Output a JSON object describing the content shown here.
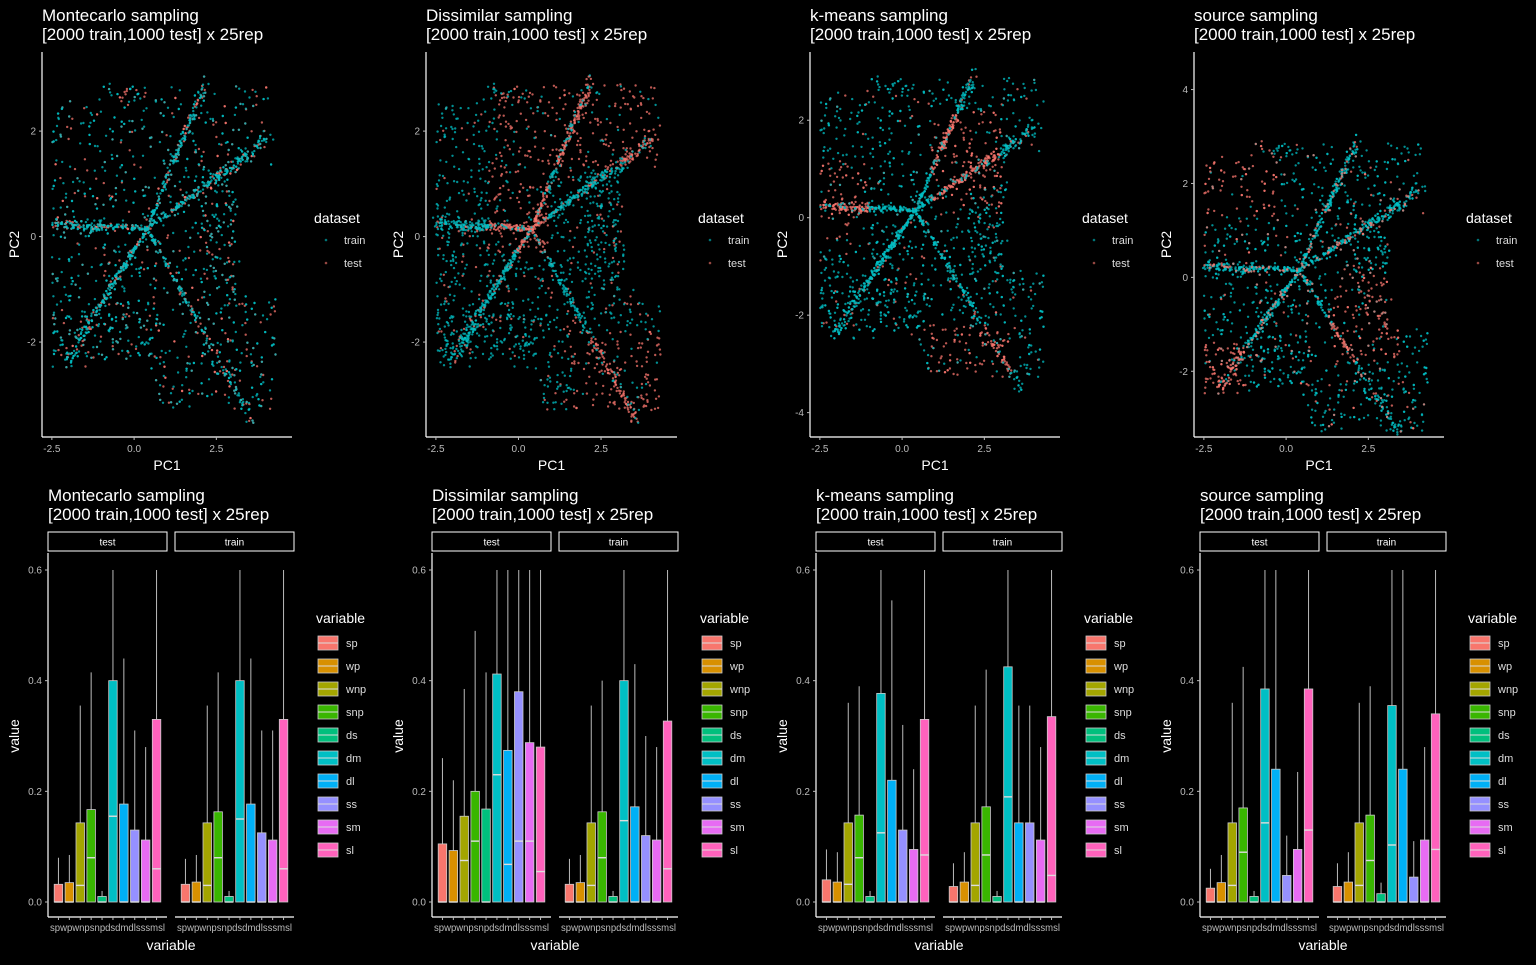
{
  "colors": {
    "train": "#00BFC4",
    "test": "#F8766D",
    "variables": [
      "#F8766D",
      "#D89000",
      "#A3A500",
      "#39B600",
      "#00BF7D",
      "#00BFC4",
      "#00B0F6",
      "#9590FF",
      "#E76BF3",
      "#FF62BC"
    ]
  },
  "chart_data": [
    {
      "type": "scatter",
      "title": "Montecarlo sampling",
      "subtitle": "[2000 train,1000 test] x 25rep",
      "xlabel": "PC1",
      "ylabel": "PC2",
      "xticks": [
        "-2.5",
        "0.0",
        "2.5"
      ],
      "xtick_values": [
        -2.5,
        0,
        2.5
      ],
      "yticks": [
        "-2",
        "0",
        "2"
      ],
      "ytick_values": [
        -2,
        0,
        2
      ],
      "xlim": [
        -2.8,
        4.8
      ],
      "ylim": [
        -3.8,
        3.5
      ],
      "legend_title": "dataset",
      "legend": [
        "train",
        "test"
      ],
      "split": "mixed",
      "series": [
        {
          "name": "train"
        },
        {
          "name": "test"
        }
      ]
    },
    {
      "type": "scatter",
      "title": "Dissimilar sampling",
      "subtitle": "[2000 train,1000 test] x 25rep",
      "xlabel": "PC1",
      "ylabel": "PC2",
      "xticks": [
        "-2.5",
        "0.0",
        "2.5"
      ],
      "xtick_values": [
        -2.5,
        0,
        2.5
      ],
      "yticks": [
        "-2",
        "0",
        "2"
      ],
      "ytick_values": [
        -2,
        0,
        2
      ],
      "xlim": [
        -2.8,
        4.8
      ],
      "ylim": [
        -3.8,
        3.5
      ],
      "legend_title": "dataset",
      "legend": [
        "train",
        "test"
      ],
      "split": "dissimilar",
      "series": [
        {
          "name": "train"
        },
        {
          "name": "test"
        }
      ]
    },
    {
      "type": "scatter",
      "title": "k-means sampling",
      "subtitle": "[2000 train,1000 test] x 25rep",
      "xlabel": "PC1",
      "ylabel": "PC2",
      "xticks": [
        "-2.5",
        "0.0",
        "2.5"
      ],
      "xtick_values": [
        -2.5,
        0,
        2.5
      ],
      "yticks": [
        "-4",
        "-2",
        "0",
        "2"
      ],
      "ytick_values": [
        -4,
        -2,
        0,
        2
      ],
      "xlim": [
        -2.8,
        4.8
      ],
      "ylim": [
        -4.5,
        3.4
      ],
      "legend_title": "dataset",
      "legend": [
        "train",
        "test"
      ],
      "split": "kmeans",
      "series": [
        {
          "name": "train"
        },
        {
          "name": "test"
        }
      ]
    },
    {
      "type": "scatter",
      "title": "source sampling",
      "subtitle": "[2000 train,1000 test] x 25rep",
      "xlabel": "PC1",
      "ylabel": "PC2",
      "xticks": [
        "-2.5",
        "0.0",
        "2.5"
      ],
      "xtick_values": [
        -2.5,
        0,
        2.5
      ],
      "yticks": [
        "-2",
        "0",
        "2",
        "4"
      ],
      "ytick_values": [
        -2,
        0,
        2,
        4
      ],
      "xlim": [
        -2.8,
        4.8
      ],
      "ylim": [
        -3.4,
        4.8
      ],
      "legend_title": "dataset",
      "legend": [
        "train",
        "test"
      ],
      "split": "source",
      "series": [
        {
          "name": "train"
        },
        {
          "name": "test"
        }
      ]
    },
    {
      "type": "box",
      "title": "Montecarlo sampling",
      "subtitle": "[2000 train,1000 test] x 25rep",
      "xlabel": "variable",
      "ylabel": "value",
      "ylim": [
        0,
        0.6
      ],
      "yticks": [
        "0.0",
        "0.2",
        "0.4",
        "0.6"
      ],
      "ytick_values": [
        0,
        0.2,
        0.4,
        0.6
      ],
      "categories": [
        "sp",
        "wp",
        "wnp",
        "snp",
        "ds",
        "dm",
        "dl",
        "ss",
        "sm",
        "sl"
      ],
      "xtick_labels": [
        "sp",
        "wp",
        "wnp",
        "snp",
        "ds",
        "dm",
        "dl",
        "ss",
        "sm",
        "sl"
      ],
      "legend_title": "variable",
      "panels": [
        {
          "name": "test",
          "boxes": [
            {
              "q3": 0.032,
              "median": 0.0,
              "max": 0.08
            },
            {
              "q3": 0.035,
              "median": 0.0,
              "max": 0.085
            },
            {
              "q3": 0.143,
              "median": 0.03,
              "max": 0.355
            },
            {
              "q3": 0.167,
              "median": 0.08,
              "max": 0.415
            },
            {
              "q3": 0.01,
              "median": 0.0,
              "max": 0.02
            },
            {
              "q3": 0.4,
              "median": 0.155,
              "max": 0.6
            },
            {
              "q3": 0.177,
              "median": 0.0,
              "max": 0.44
            },
            {
              "q3": 0.13,
              "median": 0.0,
              "max": 0.31
            },
            {
              "q3": 0.112,
              "median": 0.0,
              "max": 0.28
            },
            {
              "q3": 0.33,
              "median": 0.06,
              "max": 0.6
            }
          ]
        },
        {
          "name": "train",
          "boxes": [
            {
              "q3": 0.032,
              "median": 0.0,
              "max": 0.078
            },
            {
              "q3": 0.036,
              "median": 0.0,
              "max": 0.085
            },
            {
              "q3": 0.143,
              "median": 0.03,
              "max": 0.355
            },
            {
              "q3": 0.163,
              "median": 0.08,
              "max": 0.415
            },
            {
              "q3": 0.01,
              "median": 0.0,
              "max": 0.02
            },
            {
              "q3": 0.4,
              "median": 0.15,
              "max": 0.6
            },
            {
              "q3": 0.177,
              "median": 0.0,
              "max": 0.44
            },
            {
              "q3": 0.125,
              "median": 0.0,
              "max": 0.31
            },
            {
              "q3": 0.112,
              "median": 0.0,
              "max": 0.31
            },
            {
              "q3": 0.33,
              "median": 0.06,
              "max": 0.6
            }
          ]
        }
      ]
    },
    {
      "type": "box",
      "title": "Dissimilar sampling",
      "subtitle": "[2000 train,1000 test] x 25rep",
      "xlabel": "variable",
      "ylabel": "value",
      "ylim": [
        0,
        0.6
      ],
      "yticks": [
        "0.0",
        "0.2",
        "0.4",
        "0.6"
      ],
      "ytick_values": [
        0,
        0.2,
        0.4,
        0.6
      ],
      "categories": [
        "sp",
        "wp",
        "wnp",
        "snp",
        "ds",
        "dm",
        "dl",
        "ss",
        "sm",
        "sl"
      ],
      "xtick_labels": [
        "sp",
        "wp",
        "wnp",
        "snp",
        "ds",
        "dm",
        "dl",
        "ss",
        "sm",
        "sl"
      ],
      "legend_title": "variable",
      "panels": [
        {
          "name": "test",
          "boxes": [
            {
              "q3": 0.105,
              "median": 0.0,
              "max": 0.26
            },
            {
              "q3": 0.093,
              "median": 0.0,
              "max": 0.22
            },
            {
              "q3": 0.155,
              "median": 0.075,
              "max": 0.385
            },
            {
              "q3": 0.2,
              "median": 0.11,
              "max": 0.49
            },
            {
              "q3": 0.168,
              "median": 0.0,
              "max": 0.415
            },
            {
              "q3": 0.412,
              "median": 0.23,
              "max": 0.6
            },
            {
              "q3": 0.274,
              "median": 0.068,
              "max": 0.6
            },
            {
              "q3": 0.38,
              "median": 0.11,
              "max": 0.6
            },
            {
              "q3": 0.288,
              "median": 0.11,
              "max": 0.6
            },
            {
              "q3": 0.28,
              "median": 0.055,
              "max": 0.6
            }
          ]
        },
        {
          "name": "train",
          "boxes": [
            {
              "q3": 0.032,
              "median": 0.0,
              "max": 0.078
            },
            {
              "q3": 0.035,
              "median": 0.0,
              "max": 0.085
            },
            {
              "q3": 0.143,
              "median": 0.03,
              "max": 0.355
            },
            {
              "q3": 0.163,
              "median": 0.08,
              "max": 0.4
            },
            {
              "q3": 0.01,
              "median": 0.0,
              "max": 0.02
            },
            {
              "q3": 0.4,
              "median": 0.147,
              "max": 0.6
            },
            {
              "q3": 0.172,
              "median": 0.0,
              "max": 0.43
            },
            {
              "q3": 0.12,
              "median": 0.0,
              "max": 0.3
            },
            {
              "q3": 0.112,
              "median": 0.0,
              "max": 0.28
            },
            {
              "q3": 0.327,
              "median": 0.06,
              "max": 0.6
            }
          ]
        }
      ]
    },
    {
      "type": "box",
      "title": "k-means sampling",
      "subtitle": "[2000 train,1000 test] x 25rep",
      "xlabel": "variable",
      "ylabel": "value",
      "ylim": [
        0,
        0.6
      ],
      "yticks": [
        "0.0",
        "0.2",
        "0.4",
        "0.6"
      ],
      "ytick_values": [
        0,
        0.2,
        0.4,
        0.6
      ],
      "categories": [
        "sp",
        "wp",
        "wnp",
        "snp",
        "ds",
        "dm",
        "dl",
        "ss",
        "sm",
        "sl"
      ],
      "xtick_labels": [
        "sp",
        "wp",
        "wnp",
        "snp",
        "ds",
        "dm",
        "dl",
        "ss",
        "sm",
        "sl"
      ],
      "legend_title": "variable",
      "panels": [
        {
          "name": "test",
          "boxes": [
            {
              "q3": 0.04,
              "median": 0.0,
              "max": 0.095
            },
            {
              "q3": 0.036,
              "median": 0.0,
              "max": 0.09
            },
            {
              "q3": 0.143,
              "median": 0.032,
              "max": 0.36
            },
            {
              "q3": 0.157,
              "median": 0.08,
              "max": 0.39
            },
            {
              "q3": 0.01,
              "median": 0.0,
              "max": 0.02
            },
            {
              "q3": 0.377,
              "median": 0.125,
              "max": 0.6
            },
            {
              "q3": 0.22,
              "median": 0.0,
              "max": 0.545
            },
            {
              "q3": 0.13,
              "median": 0.0,
              "max": 0.32
            },
            {
              "q3": 0.095,
              "median": 0.0,
              "max": 0.24
            },
            {
              "q3": 0.33,
              "median": 0.085,
              "max": 0.6
            }
          ]
        },
        {
          "name": "train",
          "boxes": [
            {
              "q3": 0.028,
              "median": 0.0,
              "max": 0.07
            },
            {
              "q3": 0.036,
              "median": 0.0,
              "max": 0.09
            },
            {
              "q3": 0.143,
              "median": 0.03,
              "max": 0.355
            },
            {
              "q3": 0.172,
              "median": 0.085,
              "max": 0.42
            },
            {
              "q3": 0.01,
              "median": 0.0,
              "max": 0.02
            },
            {
              "q3": 0.425,
              "median": 0.19,
              "max": 0.6
            },
            {
              "q3": 0.143,
              "median": 0.0,
              "max": 0.355
            },
            {
              "q3": 0.143,
              "median": 0.0,
              "max": 0.355
            },
            {
              "q3": 0.112,
              "median": 0.0,
              "max": 0.28
            },
            {
              "q3": 0.335,
              "median": 0.048,
              "max": 0.6
            }
          ]
        }
      ]
    },
    {
      "type": "box",
      "title": "source sampling",
      "subtitle": "[2000 train,1000 test] x 25rep",
      "xlabel": "variable",
      "ylabel": "value",
      "ylim": [
        0,
        0.6
      ],
      "yticks": [
        "0.0",
        "0.2",
        "0.4",
        "0.6"
      ],
      "ytick_values": [
        0,
        0.2,
        0.4,
        0.6
      ],
      "categories": [
        "sp",
        "wp",
        "wnp",
        "snp",
        "ds",
        "dm",
        "dl",
        "ss",
        "sm",
        "sl"
      ],
      "xtick_labels": [
        "sp",
        "wp",
        "wnp",
        "snp",
        "ds",
        "dm",
        "dl",
        "ss",
        "sm",
        "sl"
      ],
      "legend_title": "variable",
      "panels": [
        {
          "name": "test",
          "boxes": [
            {
              "q3": 0.025,
              "median": 0.0,
              "max": 0.06
            },
            {
              "q3": 0.035,
              "median": 0.0,
              "max": 0.085
            },
            {
              "q3": 0.143,
              "median": 0.03,
              "max": 0.36
            },
            {
              "q3": 0.17,
              "median": 0.09,
              "max": 0.425
            },
            {
              "q3": 0.01,
              "median": 0.0,
              "max": 0.02
            },
            {
              "q3": 0.385,
              "median": 0.143,
              "max": 0.6
            },
            {
              "q3": 0.24,
              "median": 0.0,
              "max": 0.6
            },
            {
              "q3": 0.048,
              "median": 0.0,
              "max": 0.12
            },
            {
              "q3": 0.095,
              "median": 0.0,
              "max": 0.235
            },
            {
              "q3": 0.385,
              "median": 0.13,
              "max": 0.6
            }
          ]
        },
        {
          "name": "train",
          "boxes": [
            {
              "q3": 0.028,
              "median": 0.0,
              "max": 0.07
            },
            {
              "q3": 0.036,
              "median": 0.0,
              "max": 0.09
            },
            {
              "q3": 0.143,
              "median": 0.03,
              "max": 0.36
            },
            {
              "q3": 0.157,
              "median": 0.075,
              "max": 0.39
            },
            {
              "q3": 0.015,
              "median": 0.0,
              "max": 0.035
            },
            {
              "q3": 0.355,
              "median": 0.103,
              "max": 0.6
            },
            {
              "q3": 0.24,
              "median": 0.0,
              "max": 0.6
            },
            {
              "q3": 0.045,
              "median": 0.0,
              "max": 0.11
            },
            {
              "q3": 0.112,
              "median": 0.0,
              "max": 0.28
            },
            {
              "q3": 0.34,
              "median": 0.095,
              "max": 0.6
            }
          ]
        }
      ]
    }
  ]
}
